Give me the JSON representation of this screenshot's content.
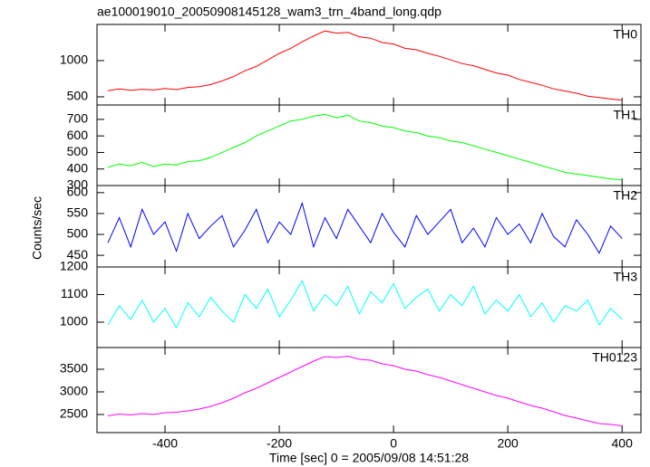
{
  "chart_data": [
    {
      "type": "line",
      "title": "ae100019010_20050908145128_wam3_trn_4band_long.qdp",
      "x": [
        -500,
        -480,
        -460,
        -440,
        -420,
        -400,
        -380,
        -360,
        -340,
        -320,
        -300,
        -280,
        -260,
        -240,
        -220,
        -200,
        -180,
        -160,
        -140,
        -120,
        -100,
        -80,
        -60,
        -40,
        -20,
        0,
        20,
        40,
        60,
        80,
        100,
        120,
        140,
        160,
        180,
        200,
        220,
        240,
        260,
        280,
        300,
        320,
        340,
        360,
        380,
        400
      ],
      "series": [
        {
          "name": "TH0",
          "color": "#ff0000",
          "values": [
            585,
            610,
            590,
            605,
            595,
            615,
            600,
            630,
            640,
            670,
            720,
            780,
            860,
            920,
            1010,
            1100,
            1170,
            1260,
            1340,
            1410,
            1380,
            1390,
            1330,
            1310,
            1250,
            1230,
            1170,
            1150,
            1100,
            1060,
            1010,
            960,
            930,
            880,
            830,
            800,
            740,
            700,
            660,
            610,
            580,
            550,
            510,
            490,
            470,
            455
          ]
        }
      ],
      "xlim": [
        -519,
        433
      ],
      "xticks": [
        -400,
        -200,
        0,
        200,
        400
      ],
      "ylim": [
        387,
        1500
      ],
      "yticks": [
        500,
        1000
      ]
    },
    {
      "type": "line",
      "x": [
        -500,
        -480,
        -460,
        -440,
        -420,
        -400,
        -380,
        -360,
        -340,
        -320,
        -300,
        -280,
        -260,
        -240,
        -220,
        -200,
        -180,
        -160,
        -140,
        -120,
        -100,
        -80,
        -60,
        -40,
        -20,
        0,
        20,
        40,
        60,
        80,
        100,
        120,
        140,
        160,
        180,
        200,
        220,
        240,
        260,
        280,
        300,
        320,
        340,
        360,
        380,
        400
      ],
      "series": [
        {
          "name": "TH1",
          "color": "#00ff00",
          "values": [
            410,
            430,
            420,
            440,
            415,
            430,
            425,
            445,
            450,
            470,
            500,
            530,
            560,
            600,
            630,
            660,
            690,
            700,
            720,
            730,
            710,
            725,
            690,
            680,
            660,
            650,
            630,
            620,
            600,
            590,
            570,
            560,
            540,
            520,
            500,
            480,
            460,
            440,
            420,
            400,
            380,
            370,
            360,
            350,
            340,
            335
          ]
        }
      ],
      "xlim": [
        -519,
        433
      ],
      "xticks": [
        -400,
        -200,
        0,
        200,
        400
      ],
      "ylim": [
        300,
        787
      ],
      "yticks": [
        300,
        400,
        500,
        600,
        700
      ]
    },
    {
      "type": "line",
      "ylabel": "Counts/sec",
      "x": [
        -500,
        -480,
        -460,
        -440,
        -420,
        -400,
        -380,
        -360,
        -340,
        -320,
        -300,
        -280,
        -260,
        -240,
        -220,
        -200,
        -180,
        -160,
        -140,
        -120,
        -100,
        -80,
        -60,
        -40,
        -20,
        0,
        20,
        40,
        60,
        80,
        100,
        120,
        140,
        160,
        180,
        200,
        220,
        240,
        260,
        280,
        300,
        320,
        340,
        360,
        380,
        400
      ],
      "series": [
        {
          "name": "TH2",
          "color": "#0000ff",
          "values": [
            480,
            540,
            470,
            560,
            500,
            530,
            460,
            550,
            490,
            520,
            545,
            470,
            510,
            560,
            480,
            530,
            500,
            575,
            470,
            540,
            490,
            560,
            520,
            480,
            550,
            505,
            470,
            545,
            500,
            530,
            560,
            480,
            515,
            470,
            540,
            500,
            525,
            480,
            550,
            495,
            470,
            535,
            500,
            455,
            520,
            490
          ]
        }
      ],
      "xlim": [
        -519,
        433
      ],
      "xticks": [
        -400,
        -200,
        0,
        200,
        400
      ],
      "ylim": [
        422,
        617
      ],
      "yticks": [
        450,
        500,
        550,
        600
      ]
    },
    {
      "type": "line",
      "x": [
        -500,
        -480,
        -460,
        -440,
        -420,
        -400,
        -380,
        -360,
        -340,
        -320,
        -300,
        -280,
        -260,
        -240,
        -220,
        -200,
        -180,
        -160,
        -140,
        -120,
        -100,
        -80,
        -60,
        -40,
        -20,
        0,
        20,
        40,
        60,
        80,
        100,
        120,
        140,
        160,
        180,
        200,
        220,
        240,
        260,
        280,
        300,
        320,
        340,
        360,
        380,
        400
      ],
      "series": [
        {
          "name": "TH3",
          "color": "#00ffff",
          "values": [
            990,
            1060,
            1010,
            1080,
            1000,
            1050,
            980,
            1070,
            1020,
            1090,
            1040,
            1000,
            1100,
            1050,
            1120,
            1020,
            1080,
            1150,
            1040,
            1100,
            1060,
            1130,
            1030,
            1110,
            1070,
            1140,
            1050,
            1090,
            1120,
            1040,
            1100,
            1060,
            1130,
            1030,
            1080,
            1040,
            1100,
            1020,
            1070,
            1000,
            1060,
            1040,
            1080,
            990,
            1050,
            1010
          ]
        }
      ],
      "xlim": [
        -519,
        433
      ],
      "xticks": [
        -400,
        -200,
        0,
        200,
        400
      ],
      "ylim": [
        908,
        1200
      ],
      "yticks": [
        1000,
        1100,
        1200
      ]
    },
    {
      "type": "line",
      "xlabel": "Time [sec] 0 = 2005/09/08 14:51:28",
      "x": [
        -500,
        -480,
        -460,
        -440,
        -420,
        -400,
        -380,
        -360,
        -340,
        -320,
        -300,
        -280,
        -260,
        -240,
        -220,
        -200,
        -180,
        -160,
        -140,
        -120,
        -100,
        -80,
        -60,
        -40,
        -20,
        0,
        20,
        40,
        60,
        80,
        100,
        120,
        140,
        160,
        180,
        200,
        220,
        240,
        260,
        280,
        300,
        320,
        340,
        360,
        380,
        400
      ],
      "series": [
        {
          "name": "TH0123",
          "color": "#ff00ff",
          "values": [
            2470,
            2510,
            2490,
            2520,
            2500,
            2540,
            2550,
            2580,
            2620,
            2680,
            2760,
            2860,
            2980,
            3080,
            3200,
            3320,
            3440,
            3560,
            3680,
            3780,
            3760,
            3790,
            3720,
            3700,
            3620,
            3580,
            3500,
            3460,
            3380,
            3320,
            3240,
            3160,
            3080,
            3000,
            2920,
            2860,
            2780,
            2700,
            2640,
            2560,
            2480,
            2420,
            2360,
            2300,
            2280,
            2250
          ]
        }
      ],
      "xlim": [
        -519,
        433
      ],
      "xticks": [
        -400,
        -200,
        0,
        200,
        400
      ],
      "ylim": [
        2100,
        3980
      ],
      "yticks": [
        2500,
        3000,
        3500
      ]
    }
  ]
}
